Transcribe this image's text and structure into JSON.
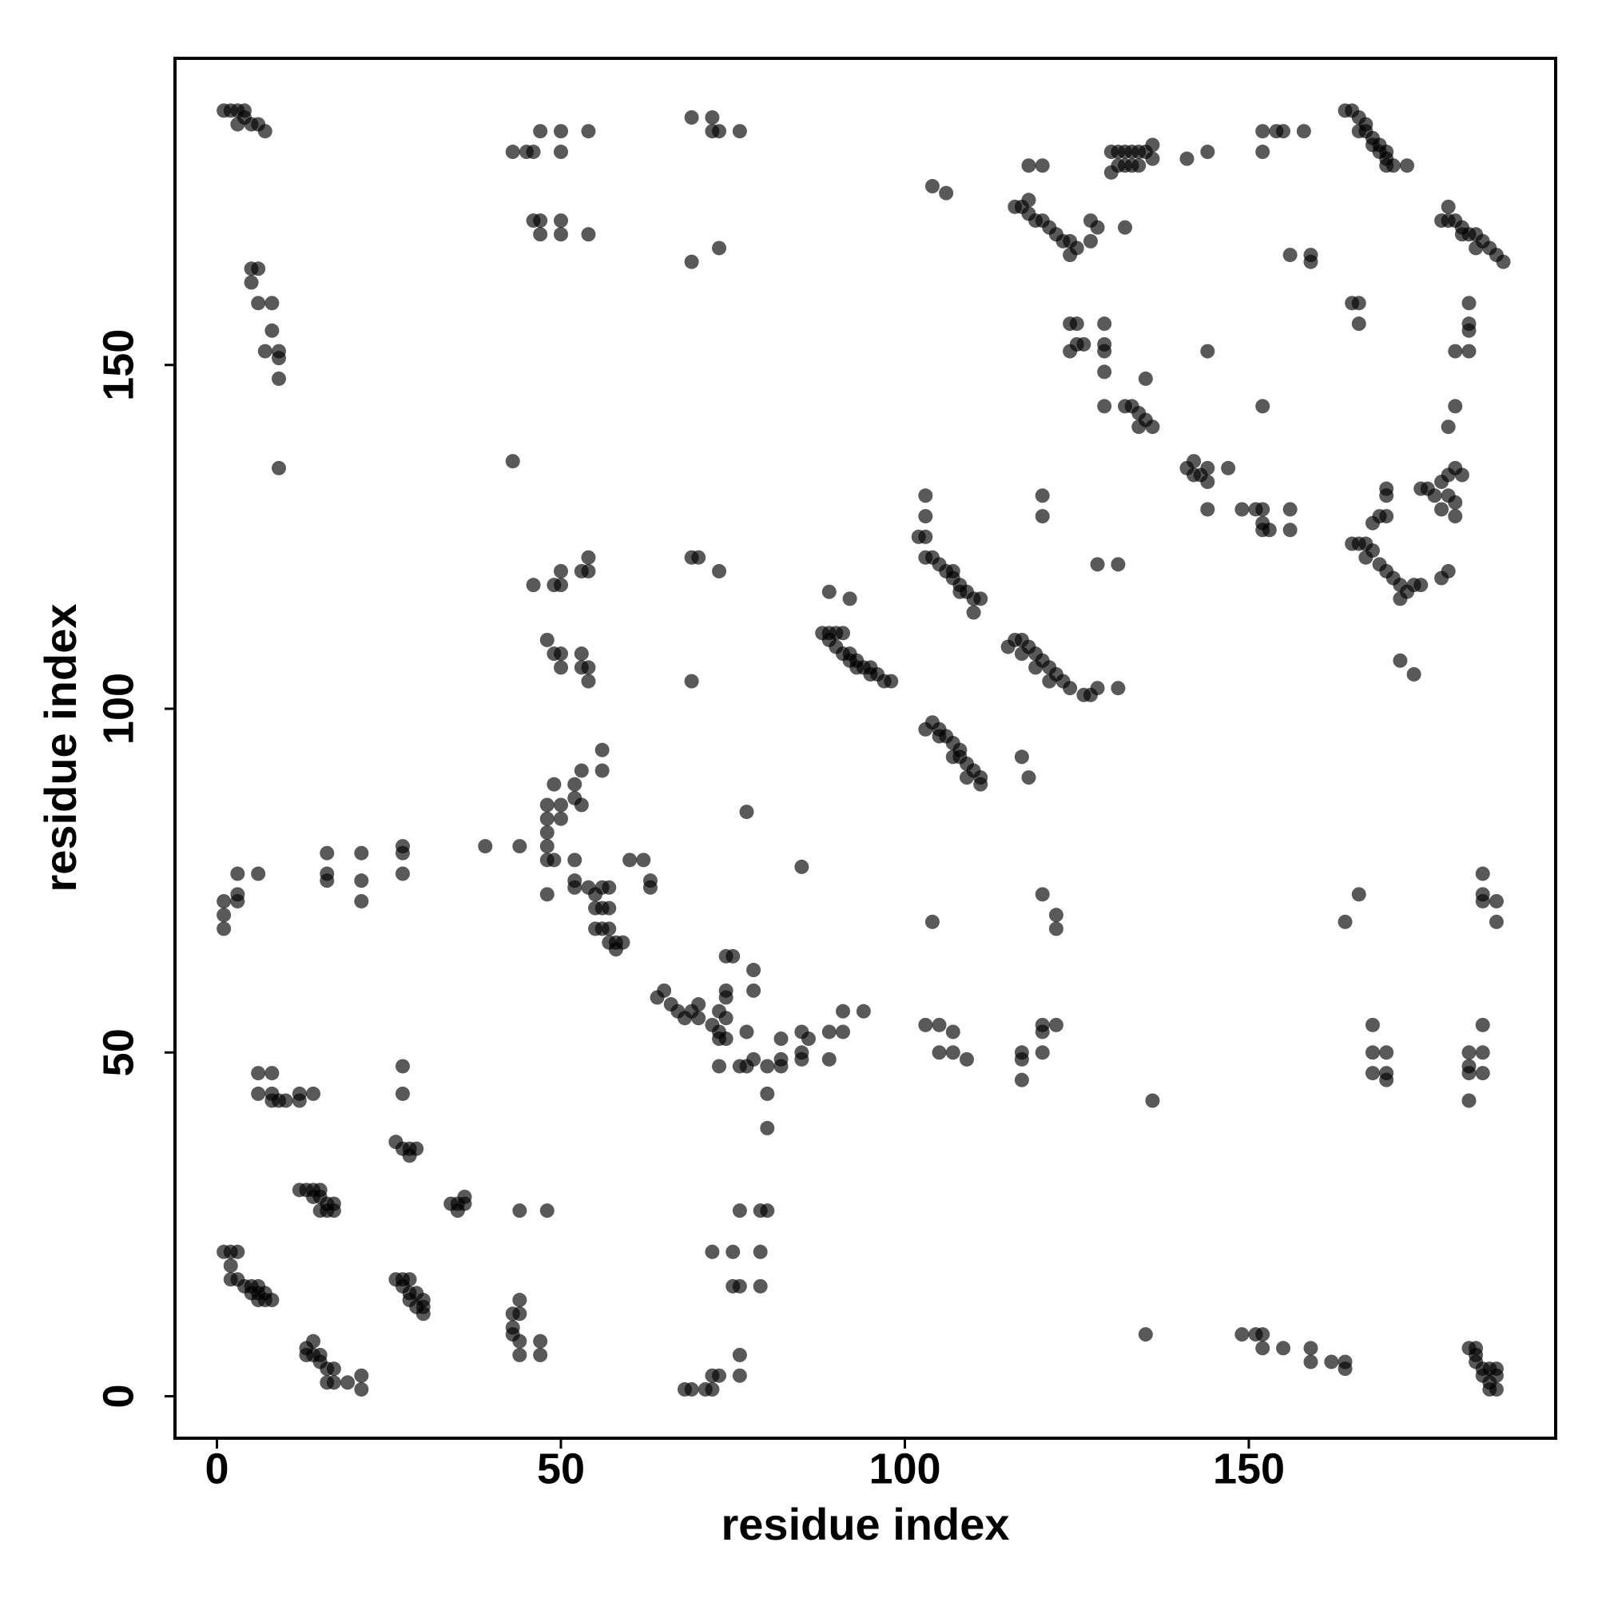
{
  "chart_data": {
    "type": "scatter",
    "xlabel": "residue index",
    "ylabel": "residue index",
    "xlim": [
      -6.1,
      194.6
    ],
    "ylim": [
      -6.1,
      194.6
    ],
    "xticks": [
      0,
      50,
      100,
      150
    ],
    "yticks": [
      0,
      50,
      100,
      150
    ],
    "opacity": 0.65,
    "series": [
      {
        "color": "#000000",
        "x": [
          1,
          2,
          3,
          4,
          3,
          5,
          6,
          7,
          4,
          5,
          6,
          5,
          6,
          8,
          8,
          7,
          9,
          9,
          9,
          9,
          43,
          45,
          46,
          50,
          47,
          50,
          54,
          46,
          47,
          47,
          50,
          50,
          54,
          69,
          72,
          72,
          73,
          76,
          69,
          73,
          164,
          165,
          166,
          166,
          167,
          167,
          168,
          168,
          169,
          169,
          170,
          170,
          170,
          171,
          173,
          152,
          154,
          155,
          158,
          152,
          144,
          141,
          130,
          131,
          132,
          133,
          134,
          135,
          136,
          136,
          132,
          133,
          134,
          131,
          130,
          118,
          120,
          116,
          117,
          118,
          118,
          119,
          120,
          121,
          122,
          123,
          124,
          125,
          124,
          127,
          128,
          132,
          127,
          104,
          106,
          156,
          159,
          159,
          178,
          179,
          180,
          181,
          182,
          183,
          184,
          185,
          186,
          187,
          179,
          181,
          183,
          124,
          125,
          125,
          126,
          129,
          129,
          129,
          129,
          124,
          165,
          166,
          166,
          144,
          182,
          182,
          182,
          180,
          182,
          180,
          179,
          129,
          132,
          133,
          134,
          135,
          136,
          134,
          135,
          152,
          141,
          142,
          143,
          144,
          144,
          142,
          147,
          144,
          149,
          151,
          152,
          156,
          152,
          152,
          153,
          156,
          43,
          120,
          120,
          103,
          103,
          102,
          103,
          103,
          104,
          105,
          106,
          107,
          108,
          109,
          110,
          111,
          110,
          107,
          108,
          128,
          131,
          175,
          176,
          177,
          178,
          179,
          180,
          181,
          179,
          180,
          178,
          180,
          170,
          170,
          168,
          169,
          170,
          165,
          166,
          167,
          168,
          167,
          169,
          170,
          171,
          172,
          173,
          174,
          175,
          172,
          179,
          178,
          172,
          174,
          69,
          70,
          73,
          46,
          49,
          50,
          50,
          53,
          54,
          54,
          48,
          49,
          50,
          50,
          53,
          53,
          54,
          54,
          69,
          89,
          92,
          88,
          89,
          89,
          90,
          91,
          90,
          91,
          92,
          92,
          93,
          94,
          95,
          96,
          97,
          98,
          93,
          95,
          115,
          116,
          117,
          118,
          119,
          120,
          121,
          122,
          123,
          124,
          126,
          127,
          128,
          131,
          117,
          119,
          121,
          104,
          105,
          106,
          107,
          108,
          108,
          109,
          110,
          111,
          111,
          105,
          107,
          109,
          103,
          117,
          118,
          56,
          56,
          53,
          52,
          49,
          48,
          50,
          52,
          53,
          48,
          50,
          48,
          48,
          48,
          49,
          52,
          52,
          52,
          54,
          55,
          56,
          57,
          55,
          56,
          57,
          55,
          56,
          57,
          57,
          58,
          59,
          58,
          48,
          60,
          62,
          63,
          63,
          77,
          85,
          1,
          1,
          1,
          3,
          3,
          3,
          6,
          16,
          16,
          16,
          21,
          21,
          21,
          27,
          27,
          27,
          39,
          44,
          104,
          120,
          122,
          122,
          166,
          164,
          184,
          184,
          184,
          186,
          186,
          64,
          65,
          66,
          67,
          68,
          69,
          70,
          70,
          73,
          74,
          74,
          72,
          73,
          73,
          74,
          74,
          75,
          74,
          78,
          78,
          77,
          77,
          76,
          78,
          80,
          80,
          80,
          82,
          82,
          82,
          85,
          85,
          85,
          86,
          89,
          89,
          91,
          91,
          94,
          73,
          103,
          105,
          105,
          107,
          107,
          109,
          117,
          117,
          117,
          120,
          120,
          120,
          122,
          136,
          168,
          168,
          168,
          170,
          170,
          170,
          182,
          182,
          182,
          182,
          184,
          184,
          184,
          6,
          8,
          6,
          8,
          8,
          9,
          10,
          12,
          12,
          14,
          27,
          27,
          26,
          27,
          28,
          28,
          29,
          12,
          13,
          14,
          15,
          14,
          15,
          16,
          17,
          15,
          16,
          17,
          34,
          35,
          36,
          35,
          36,
          44,
          48,
          1,
          2,
          3,
          2,
          2,
          3,
          4,
          5,
          5,
          6,
          6,
          7,
          7,
          8,
          6,
          26,
          27,
          28,
          27,
          28,
          29,
          30,
          30,
          30,
          28,
          29,
          43,
          43,
          44,
          44,
          43,
          44,
          47,
          47,
          44,
          13,
          13,
          14,
          14,
          15,
          15,
          16,
          16,
          17,
          17,
          19,
          21,
          21,
          72,
          75,
          75,
          76,
          79,
          79,
          76,
          79,
          80,
          76,
          76,
          72,
          73,
          68,
          69,
          71,
          72,
          135,
          149,
          151,
          152,
          152,
          155,
          159,
          159,
          162,
          164,
          164,
          182,
          183,
          183,
          183,
          184,
          185,
          186,
          186,
          185,
          186,
          185,
          184
        ],
        "values": [
          187,
          187,
          187,
          187,
          185,
          185,
          185,
          184,
          186,
          164,
          164,
          162,
          159,
          159,
          155,
          152,
          152,
          151,
          148,
          135,
          181,
          181,
          181,
          181,
          184,
          184,
          184,
          171,
          171,
          169,
          171,
          169,
          169,
          186,
          186,
          184,
          184,
          184,
          165,
          167,
          187,
          187,
          186,
          184,
          184,
          185,
          183,
          182,
          182,
          181,
          181,
          180,
          179,
          179,
          179,
          184,
          184,
          184,
          184,
          181,
          181,
          180,
          181,
          181,
          181,
          181,
          181,
          181,
          182,
          180,
          179,
          179,
          179,
          179,
          178,
          179,
          179,
          173,
          173,
          174,
          172,
          171,
          171,
          170,
          169,
          168,
          168,
          167,
          166,
          168,
          170,
          170,
          171,
          176,
          175,
          166,
          166,
          165,
          171,
          171,
          171,
          170,
          169,
          169,
          168,
          167,
          166,
          165,
          173,
          169,
          167,
          156,
          156,
          153,
          153,
          156,
          153,
          152,
          149,
          152,
          159,
          159,
          156,
          152,
          159,
          156,
          155,
          152,
          152,
          144,
          141,
          144,
          144,
          144,
          143,
          142,
          141,
          141,
          148,
          144,
          135,
          134,
          134,
          133,
          135,
          136,
          135,
          129,
          129,
          129,
          129,
          129,
          127,
          126,
          126,
          126,
          136,
          131,
          128,
          131,
          128,
          125,
          125,
          122,
          122,
          121,
          120,
          119,
          118,
          117,
          116,
          116,
          114,
          120,
          117,
          121,
          121,
          132,
          132,
          131,
          133,
          134,
          135,
          134,
          131,
          130,
          129,
          128,
          132,
          131,
          127,
          128,
          128,
          124,
          124,
          124,
          123,
          122,
          121,
          120,
          119,
          118,
          117,
          118,
          118,
          116,
          120,
          119,
          107,
          105,
          122,
          122,
          120,
          118,
          118,
          118,
          120,
          120,
          120,
          122,
          110,
          108,
          108,
          106,
          108,
          106,
          106,
          104,
          104,
          117,
          116,
          111,
          111,
          110,
          111,
          111,
          109,
          108,
          108,
          107,
          107,
          106,
          106,
          105,
          104,
          104,
          106,
          105,
          109,
          110,
          110,
          109,
          108,
          107,
          106,
          105,
          104,
          103,
          102,
          102,
          103,
          103,
          108,
          106,
          104,
          98,
          97,
          96,
          95,
          94,
          93,
          92,
          91,
          90,
          89,
          96,
          93,
          90,
          97,
          93,
          90,
          94,
          91,
          91,
          89,
          89,
          86,
          86,
          87,
          86,
          84,
          84,
          82,
          80,
          78,
          78,
          78,
          75,
          74,
          74,
          73,
          74,
          74,
          71,
          71,
          71,
          68,
          68,
          68,
          66,
          66,
          66,
          65,
          73,
          78,
          78,
          75,
          74,
          85,
          77,
          72,
          70,
          68,
          76,
          73,
          72,
          76,
          79,
          76,
          75,
          79,
          75,
          72,
          80,
          79,
          76,
          80,
          80,
          69,
          73,
          70,
          68,
          73,
          69,
          76,
          73,
          72,
          72,
          69,
          58,
          59,
          57,
          56,
          55,
          56,
          55,
          57,
          56,
          58,
          55,
          54,
          53,
          52,
          52,
          59,
          64,
          64,
          62,
          59,
          53,
          48,
          48,
          49,
          48,
          44,
          39,
          52,
          49,
          48,
          53,
          50,
          49,
          52,
          53,
          49,
          53,
          56,
          56,
          48,
          54,
          54,
          50,
          53,
          50,
          49,
          50,
          49,
          46,
          53,
          54,
          50,
          54,
          43,
          54,
          50,
          47,
          50,
          47,
          46,
          50,
          48,
          47,
          43,
          54,
          50,
          47,
          47,
          47,
          44,
          44,
          43,
          43,
          43,
          43,
          44,
          44,
          48,
          44,
          37,
          36,
          36,
          35,
          36,
          30,
          30,
          30,
          30,
          29,
          29,
          28,
          28,
          27,
          27,
          27,
          28,
          28,
          29,
          27,
          28,
          27,
          27,
          21,
          21,
          21,
          19,
          17,
          17,
          16,
          16,
          15,
          15,
          14,
          14,
          15,
          14,
          16,
          17,
          17,
          17,
          16,
          15,
          15,
          14,
          13,
          12,
          14,
          13,
          12,
          10,
          12,
          14,
          9,
          8,
          8,
          6,
          6,
          7,
          6,
          8,
          6,
          5,
          6,
          4,
          2,
          4,
          2,
          2,
          3,
          1,
          21,
          21,
          16,
          16,
          21,
          16,
          27,
          27,
          27,
          6,
          3,
          3,
          3,
          1,
          1,
          1,
          1,
          9,
          9,
          9,
          9,
          7,
          7,
          7,
          5,
          5,
          5,
          4,
          7,
          7,
          6,
          5,
          4,
          4,
          4,
          3,
          2,
          1,
          1,
          3
        ]
      }
    ]
  }
}
